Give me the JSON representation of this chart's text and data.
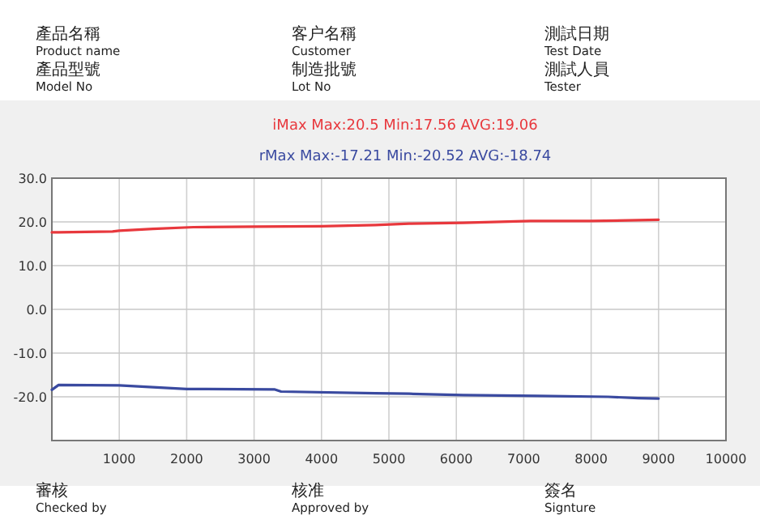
{
  "chart_data": {
    "type": "line",
    "annotations": [
      "產品名稱",
      "Product name",
      "客户名稱",
      "Customer",
      "測試日期",
      "Test Date",
      "產品型號",
      "Model No",
      "制造批號",
      "Lot No",
      "測試人員",
      "Tester",
      "審核",
      "Checked by",
      "核准",
      "Approved by",
      "簽名",
      "Signture"
    ],
    "series": [
      {
        "name": "iMax  Max:20.5 Min:17.56 AVG:19.06",
        "color": "#e8383d",
        "x": [
          0,
          100,
          900,
          1000,
          1500,
          2100,
          3000,
          4000,
          4800,
          5300,
          6100,
          7100,
          8000,
          8700,
          9000
        ],
        "values": [
          17.6,
          17.6,
          17.8,
          18.0,
          18.4,
          18.8,
          18.9,
          19.0,
          19.3,
          19.6,
          19.8,
          20.2,
          20.2,
          20.4,
          20.5
        ]
      },
      {
        "name": "rMax  Max:-17.21 Min:-20.52 AVG:-18.74",
        "color": "#3a4aa0",
        "x": [
          0,
          100,
          1000,
          1500,
          2000,
          3300,
          3400,
          4800,
          5300,
          6100,
          7200,
          8250,
          8700,
          9000
        ],
        "values": [
          -18.4,
          -17.3,
          -17.4,
          -17.8,
          -18.2,
          -18.3,
          -18.8,
          -19.2,
          -19.3,
          -19.6,
          -19.8,
          -20.0,
          -20.3,
          -20.4
        ]
      }
    ],
    "xlim": [
      0,
      10000
    ],
    "ylim": [
      -30,
      30
    ],
    "xticks": [
      1000,
      2000,
      3000,
      4000,
      5000,
      6000,
      7000,
      8000,
      9000,
      10000
    ],
    "yticks": [
      {
        "value": 30,
        "label": "30.0"
      },
      {
        "value": 20,
        "label": "20.0"
      },
      {
        "value": 10,
        "label": "10.0"
      },
      {
        "value": 0,
        "label": "0.0"
      },
      {
        "value": -10,
        "label": "-10.0"
      },
      {
        "value": -20,
        "label": "-20.0"
      }
    ],
    "grid": true
  }
}
